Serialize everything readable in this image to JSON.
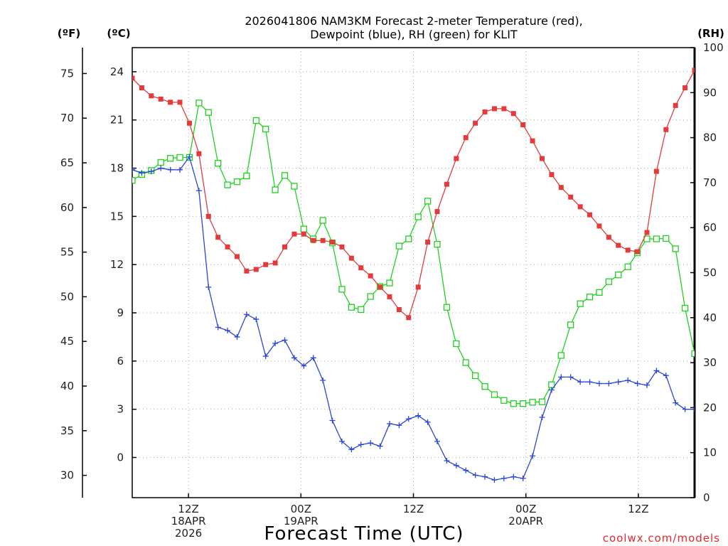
{
  "chart_data": {
    "type": "line",
    "title_line1": "2026041806 NAM3KM Forecast 2-meter Temperature (red),",
    "title_line2": "Dewpoint (blue), RH (green) for KLIT",
    "xlabel": "Forecast Time (UTC)",
    "credit": "coolwx.com/models",
    "units": {
      "fahrenheit": "(ºF)",
      "celsius": "(ºC)",
      "rh": "(RH)"
    },
    "y_left_celsius": {
      "range": [
        -2.5,
        25.5
      ],
      "ticks": [
        "0",
        "3",
        "6",
        "9",
        "12",
        "15",
        "18",
        "21",
        "24"
      ]
    },
    "y_left_fahrenheit": {
      "ticks": [
        "30",
        "35",
        "40",
        "45",
        "50",
        "55",
        "60",
        "65",
        "70",
        "75"
      ]
    },
    "y_right_rh": {
      "range": [
        0,
        100
      ],
      "ticks": [
        "0",
        "10",
        "20",
        "30",
        "40",
        "50",
        "60",
        "70",
        "80",
        "90",
        "100"
      ]
    },
    "x_range_hours": [
      0,
      60
    ],
    "x_ticks": [
      {
        "hour": 6,
        "lines": [
          "12Z",
          "18APR",
          "2026"
        ]
      },
      {
        "hour": 18,
        "lines": [
          "00Z",
          "19APR"
        ]
      },
      {
        "hour": 30,
        "lines": [
          "12Z"
        ]
      },
      {
        "hour": 42,
        "lines": [
          "00Z",
          "20APR"
        ]
      },
      {
        "hour": 54,
        "lines": [
          "12Z"
        ]
      }
    ],
    "colors": {
      "temperature": "#e33b3b",
      "dewpoint": "#2b46d6",
      "rh": "#1fd11f",
      "grid": "#aaaaaa",
      "credit": "#e0292d"
    },
    "series": [
      {
        "name": "Temperature",
        "unit": "C",
        "values": [
          23.6,
          23.0,
          22.5,
          22.3,
          22.1,
          22.1,
          20.8,
          18.9,
          15.0,
          13.7,
          13.1,
          12.5,
          11.6,
          11.7,
          12.0,
          12.1,
          13.1,
          13.9,
          13.9,
          13.5,
          13.5,
          13.4,
          13.1,
          12.4,
          11.8,
          11.3,
          10.6,
          10.0,
          9.2,
          8.7,
          10.6,
          13.4,
          15.3,
          17.0,
          18.6,
          19.9,
          20.8,
          21.5,
          21.7,
          21.7,
          21.4,
          20.7,
          19.7,
          18.6,
          17.6,
          16.8,
          16.2,
          15.6,
          15.1,
          14.4,
          13.7,
          13.2,
          12.9,
          12.8,
          14.0,
          17.8,
          20.4,
          21.9,
          23.0,
          24.1
        ]
      },
      {
        "name": "Dewpoint",
        "unit": "C",
        "values": [
          17.9,
          17.7,
          17.8,
          18.0,
          17.9,
          17.9,
          18.7,
          16.6,
          10.6,
          8.1,
          7.9,
          7.5,
          8.9,
          8.6,
          6.3,
          7.1,
          7.3,
          6.2,
          5.7,
          6.2,
          4.8,
          2.3,
          1.0,
          0.5,
          0.8,
          0.9,
          0.7,
          2.1,
          2.0,
          2.4,
          2.6,
          2.2,
          1.0,
          -0.2,
          -0.5,
          -0.8,
          -1.1,
          -1.2,
          -1.4,
          -1.3,
          -1.2,
          -1.3,
          0.1,
          2.5,
          4.2,
          5.0,
          5.0,
          4.7,
          4.7,
          4.6,
          4.6,
          4.7,
          4.8,
          4.6,
          4.5,
          5.4,
          5.1,
          3.4,
          3.0,
          3.0
        ]
      },
      {
        "name": "RH",
        "unit": "%",
        "values": [
          70.5,
          71.8,
          72.7,
          74.5,
          75.4,
          75.6,
          75.6,
          87.7,
          85.6,
          74.3,
          69.5,
          70.2,
          71.5,
          83.8,
          81.9,
          68.4,
          71.6,
          69.2,
          59.7,
          57.5,
          61.6,
          56.6,
          46.3,
          42.3,
          41.8,
          44.7,
          46.9,
          47.7,
          55.9,
          57.5,
          62.4,
          65.9,
          56.3,
          42.3,
          34.2,
          30.0,
          27.1,
          24.7,
          22.9,
          21.6,
          20.9,
          20.9,
          21.2,
          21.3,
          25.1,
          31.6,
          38.4,
          43.1,
          44.6,
          45.6,
          48.0,
          49.5,
          51.3,
          54.4,
          57.5,
          57.5,
          57.6,
          55.3,
          42.1,
          32.0
        ]
      }
    ]
  }
}
